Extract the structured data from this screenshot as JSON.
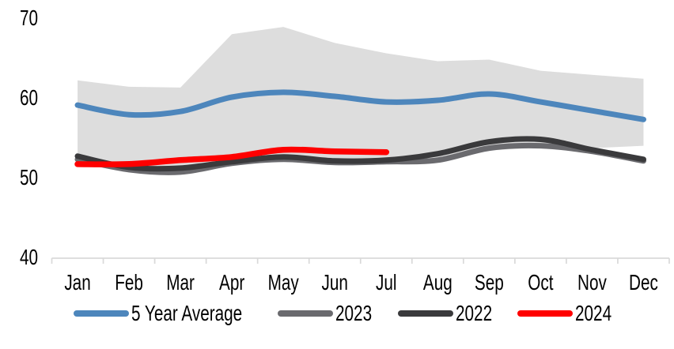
{
  "chart_data": {
    "type": "line",
    "title": "",
    "categories": [
      "Jan",
      "Feb",
      "Mar",
      "Apr",
      "May",
      "Jun",
      "Jul",
      "Aug",
      "Sep",
      "Oct",
      "Nov",
      "Dec"
    ],
    "y_ticks": [
      70,
      60,
      50,
      40
    ],
    "ylim": [
      40,
      70
    ],
    "grid": false,
    "legend_position": "bottom",
    "axis_color": "#D9D9D9",
    "text_color": "#000000",
    "band": {
      "color": "#DDDDDD",
      "max": [
        62.1,
        61.3,
        61.2,
        67.9,
        68.8,
        66.8,
        65.5,
        64.5,
        64.7,
        63.3,
        62.8,
        62.3
      ],
      "min": [
        52.9,
        50.8,
        50.5,
        51.5,
        52.0,
        51.7,
        51.7,
        52.0,
        53.3,
        53.7,
        53.6,
        53.9
      ]
    },
    "series": [
      {
        "name": "5 Year Average",
        "color": "#4D86BC",
        "width": 7,
        "values": [
          59.0,
          57.8,
          58.2,
          60.0,
          60.6,
          60.1,
          59.4,
          59.6,
          60.4,
          59.4,
          58.3,
          57.2
        ]
      },
      {
        "name": "2023",
        "color": "#6A6A6E",
        "width": 7,
        "values": [
          52.2,
          50.9,
          50.6,
          51.7,
          52.2,
          51.8,
          51.9,
          52.1,
          53.6,
          53.9,
          53.2,
          52.0
        ]
      },
      {
        "name": "2022",
        "color": "#3A3A3C",
        "width": 7,
        "values": [
          52.6,
          51.2,
          51.1,
          51.9,
          52.5,
          52.0,
          52.1,
          52.9,
          54.4,
          54.7,
          53.4,
          52.2
        ]
      },
      {
        "name": "2024",
        "color": "#FF0000",
        "width": 7.5,
        "values": [
          51.6,
          51.6,
          52.1,
          52.5,
          53.4,
          53.2,
          53.1,
          null,
          null,
          null,
          null,
          null
        ]
      }
    ]
  }
}
